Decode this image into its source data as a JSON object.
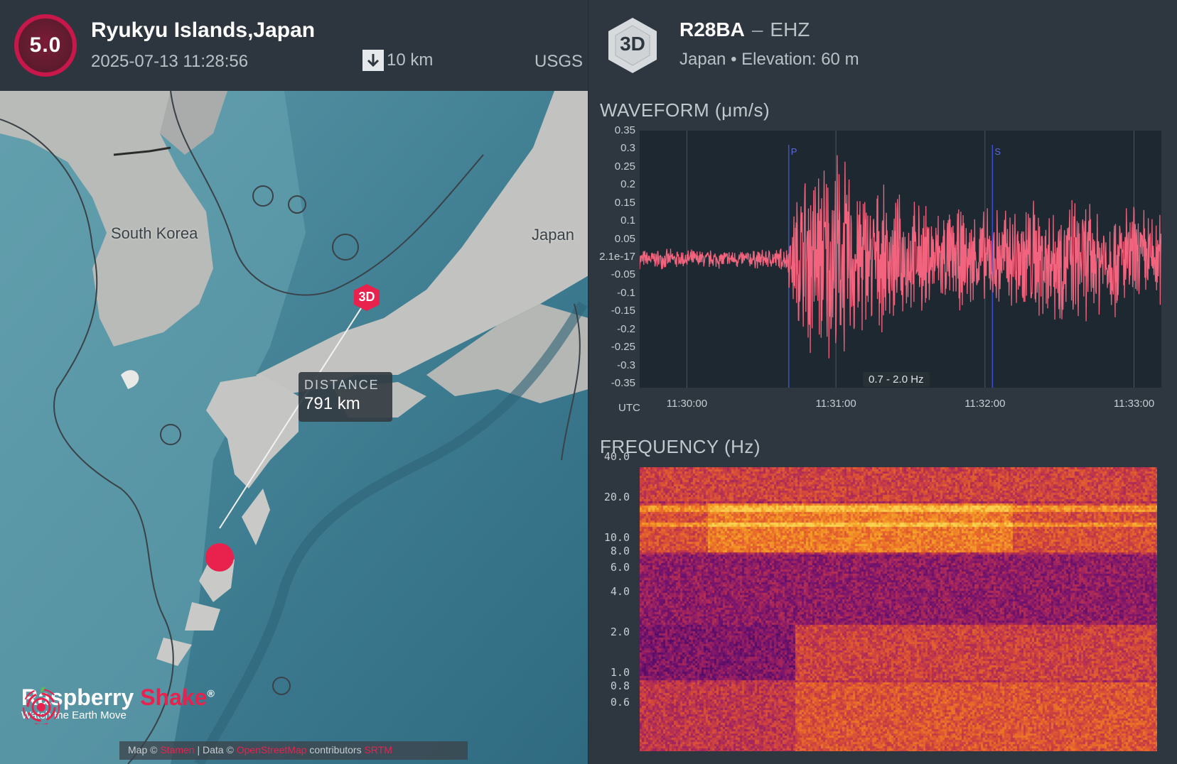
{
  "event": {
    "magnitude": "5.0",
    "location": "Ryukyu Islands,Japan",
    "datetime": "2025-07-13 11:28:56",
    "depth": "10 km",
    "source": "USGS"
  },
  "map": {
    "labels": {
      "korea": "South Korea",
      "japan": "Japan"
    },
    "station_code": "3D",
    "distance_title": "DISTANCE",
    "distance_value": "791 km",
    "brand": {
      "name_part1": "Raspberry",
      "name_part2": "Shake",
      "reg": "®",
      "tagline": "Watch the Earth Move"
    },
    "attribution": {
      "map": "Map ©",
      "map_link": "Stamen",
      "data": "| Data ©",
      "data_link": "OpenStreetMap",
      "contrib": "contributors",
      "extra_link": "SRTM"
    }
  },
  "station": {
    "badge": "3D",
    "name": "R28BA",
    "separator": "–",
    "channel": "EHZ",
    "country": "Japan",
    "bullet": "•",
    "elevation": "Elevation: 60 m"
  },
  "waveform": {
    "title": "WAVEFORM (μm/s)",
    "y_ticks": [
      "0.35",
      "0.3",
      "0.25",
      "0.2",
      "0.15",
      "0.1",
      "0.05",
      "2.1e-17",
      "-0.05",
      "-0.1",
      "-0.15",
      "-0.2",
      "-0.25",
      "-0.3",
      "-0.35"
    ],
    "x_ticks": [
      "11:30:00",
      "11:31:00",
      "11:32:00",
      "11:33:00"
    ],
    "time_zone": "UTC",
    "p_label": "P",
    "s_label": "S",
    "filter": "0.7 - 2.0 Hz",
    "trace_color": "#f2637e"
  },
  "spectrogram": {
    "title": "FREQUENCY (Hz)",
    "y_ticks": [
      "40.0",
      "20.0",
      "10.0",
      "8.0",
      "6.0",
      "4.0",
      "2.0",
      "1.0",
      "0.8",
      "0.6"
    ]
  },
  "chart_data": {
    "type": "line",
    "title": "WAVEFORM (μm/s)",
    "xlabel": "UTC",
    "ylabel": "",
    "ylim": [
      -0.35,
      0.35
    ],
    "x_range": [
      "11:29:41",
      "11:33:11"
    ],
    "x_ticks": [
      "11:30:00",
      "11:31:00",
      "11:32:00",
      "11:33:00"
    ],
    "markers": [
      {
        "label": "P",
        "time": "11:30:41"
      },
      {
        "label": "S",
        "time": "11:32:03"
      }
    ],
    "envelope": {
      "x": [
        "11:29:41",
        "11:30:00",
        "11:30:30",
        "11:30:40",
        "11:30:45",
        "11:30:50",
        "11:31:00",
        "11:31:15",
        "11:31:30",
        "11:31:45",
        "11:32:00",
        "11:32:15",
        "11:32:30",
        "11:32:45",
        "11:33:00",
        "11:33:11"
      ],
      "amplitude": [
        0.03,
        0.03,
        0.03,
        0.04,
        0.25,
        0.32,
        0.34,
        0.22,
        0.18,
        0.16,
        0.15,
        0.2,
        0.2,
        0.18,
        0.17,
        0.15
      ]
    },
    "grid": true,
    "series": [
      {
        "values": "seismic trace"
      }
    ]
  }
}
